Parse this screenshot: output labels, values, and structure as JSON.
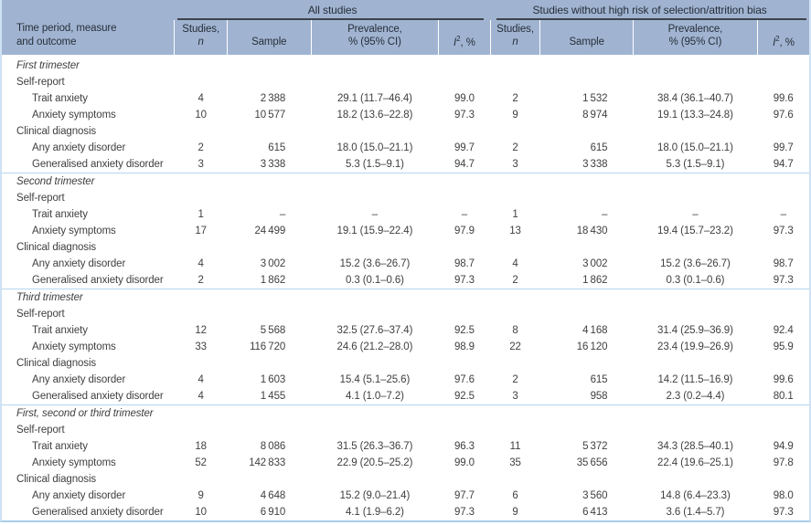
{
  "table": {
    "stub_line1": "Time period, measure",
    "stub_line2": "and outcome",
    "groups": [
      {
        "label": "All studies"
      },
      {
        "label": "Studies without high risk of selection/attrition bias"
      }
    ],
    "columns": {
      "studies_line1": "Studies,",
      "studies_italic": "n",
      "sample": "Sample",
      "prevalence_line1": "Prevalence,",
      "prevalence_line2": "% (95% CI)",
      "i2_italic": "I",
      "i2_sup": "2",
      "i2_rest": ", %"
    },
    "missing_value": "–",
    "sections": [
      {
        "title": "First trimester",
        "subsections": [
          {
            "label": "Self-report",
            "rows": [
              {
                "label": "Trait anxiety",
                "all": [
                  "4",
                  "2 388",
                  "29.1 (11.7–46.4)",
                  "99.0"
                ],
                "low_risk": [
                  "2",
                  "1 532",
                  "38.4 (36.1–40.7)",
                  "99.6"
                ]
              },
              {
                "label": "Anxiety symptoms",
                "all": [
                  "10",
                  "10 577",
                  "18.2 (13.6–22.8)",
                  "97.3"
                ],
                "low_risk": [
                  "9",
                  "8 974",
                  "19.1 (13.3–24.8)",
                  "97.6"
                ]
              }
            ]
          },
          {
            "label": "Clinical diagnosis",
            "rows": [
              {
                "label": "Any anxiety disorder",
                "all": [
                  "2",
                  "615",
                  "18.0 (15.0–21.1)",
                  "99.7"
                ],
                "low_risk": [
                  "2",
                  "615",
                  "18.0 (15.0–21.1)",
                  "99.7"
                ]
              },
              {
                "label": "Generalised anxiety disorder",
                "all": [
                  "3",
                  "3 338",
                  "5.3 (1.5–9.1)",
                  "94.7"
                ],
                "low_risk": [
                  "3",
                  "3 338",
                  "5.3 (1.5–9.1)",
                  "94.7"
                ]
              }
            ]
          }
        ]
      },
      {
        "title": "Second trimester",
        "subsections": [
          {
            "label": "Self-report",
            "rows": [
              {
                "label": "Trait anxiety",
                "all": [
                  "1",
                  "–",
                  "–",
                  "–"
                ],
                "low_risk": [
                  "1",
                  "–",
                  "–",
                  "–"
                ]
              },
              {
                "label": "Anxiety symptoms",
                "all": [
                  "17",
                  "24 499",
                  "19.1 (15.9–22.4)",
                  "97.9"
                ],
                "low_risk": [
                  "13",
                  "18 430",
                  "19.4 (15.7–23.2)",
                  "97.3"
                ]
              }
            ]
          },
          {
            "label": "Clinical diagnosis",
            "rows": [
              {
                "label": "Any anxiety disorder",
                "all": [
                  "4",
                  "3 002",
                  "15.2 (3.6–26.7)",
                  "98.7"
                ],
                "low_risk": [
                  "4",
                  "3 002",
                  "15.2 (3.6–26.7)",
                  "98.7"
                ]
              },
              {
                "label": "Generalised anxiety disorder",
                "all": [
                  "2",
                  "1 862",
                  "0.3 (0.1–0.6)",
                  "97.3"
                ],
                "low_risk": [
                  "2",
                  "1 862",
                  "0.3 (0.1–0.6)",
                  "97.3"
                ]
              }
            ]
          }
        ]
      },
      {
        "title": "Third trimester",
        "subsections": [
          {
            "label": "Self-report",
            "rows": [
              {
                "label": "Trait anxiety",
                "all": [
                  "12",
                  "5 568",
                  "32.5 (27.6–37.4)",
                  "92.5"
                ],
                "low_risk": [
                  "8",
                  "4 168",
                  "31.4 (25.9–36.9)",
                  "92.4"
                ]
              },
              {
                "label": "Anxiety symptoms",
                "all": [
                  "33",
                  "116 720",
                  "24.6 (21.2–28.0)",
                  "98.9"
                ],
                "low_risk": [
                  "22",
                  "16 120",
                  "23.4 (19.9–26.9)",
                  "95.9"
                ]
              }
            ]
          },
          {
            "label": "Clinical diagnosis",
            "rows": [
              {
                "label": "Any anxiety disorder",
                "all": [
                  "4",
                  "1 603",
                  "15.4 (5.1–25.6)",
                  "97.6"
                ],
                "low_risk": [
                  "2",
                  "615",
                  "14.2 (11.5–16.9)",
                  "99.6"
                ]
              },
              {
                "label": "Generalised anxiety disorder",
                "all": [
                  "4",
                  "1 455",
                  "4.1 (1.0–7.2)",
                  "92.5"
                ],
                "low_risk": [
                  "3",
                  "958",
                  "2.3 (0.2–4.4)",
                  "80.1"
                ]
              }
            ]
          }
        ]
      },
      {
        "title": "First, second or third trimester",
        "subsections": [
          {
            "label": "Self-report",
            "rows": [
              {
                "label": "Trait anxiety",
                "all": [
                  "18",
                  "8 086",
                  "31.5 (26.3–36.7)",
                  "96.3"
                ],
                "low_risk": [
                  "11",
                  "5 372",
                  "34.3 (28.5–40.1)",
                  "94.9"
                ]
              },
              {
                "label": "Anxiety symptoms",
                "all": [
                  "52",
                  "142 833",
                  "22.9 (20.5–25.2)",
                  "99.0"
                ],
                "low_risk": [
                  "35",
                  "35 656",
                  "22.4 (19.6–25.1)",
                  "97.8"
                ]
              }
            ]
          },
          {
            "label": "Clinical diagnosis",
            "rows": [
              {
                "label": "Any anxiety disorder",
                "all": [
                  "9",
                  "4 648",
                  "15.2 (9.0–21.4)",
                  "97.7"
                ],
                "low_risk": [
                  "6",
                  "3 560",
                  "14.8 (6.4–23.3)",
                  "98.0"
                ]
              },
              {
                "label": "Generalised anxiety disorder",
                "all": [
                  "10",
                  "6 910",
                  "4.1 (1.9–6.2)",
                  "97.3"
                ],
                "low_risk": [
                  "9",
                  "6 413",
                  "3.6 (1.4–5.7)",
                  "97.3"
                ]
              }
            ]
          }
        ]
      }
    ]
  },
  "colors": {
    "header_bg": "#a0b4d2",
    "header_rule": "#3d434c",
    "section_rule": "#b7d6ee",
    "frame_border": "#cfe2f3",
    "frame_bottom": "#a9cde9",
    "header_text": "#272e38",
    "body_text": "#3f3f3f"
  }
}
